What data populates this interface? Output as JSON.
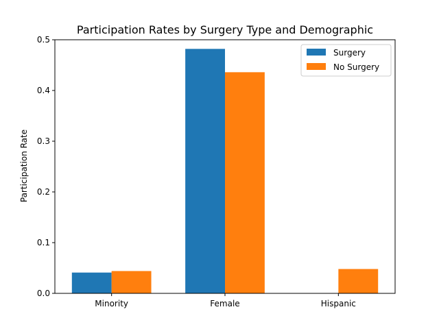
{
  "chart_data": {
    "type": "bar",
    "title": "Participation Rates by Surgery Type and Demographic",
    "xlabel": "",
    "ylabel": "Participation Rate",
    "categories": [
      "Minority",
      "Female",
      "Hispanic"
    ],
    "series": [
      {
        "name": "Surgery",
        "color": "#1f77b4",
        "values": [
          0.041,
          0.482,
          0.0
        ]
      },
      {
        "name": "No Surgery",
        "color": "#ff7f0e",
        "values": [
          0.044,
          0.436,
          0.048
        ]
      }
    ],
    "ylim": [
      0,
      0.5
    ],
    "yticks": [
      "0.0",
      "0.1",
      "0.2",
      "0.3",
      "0.4",
      "0.5"
    ],
    "grid": false,
    "legend_position": "top-right"
  }
}
